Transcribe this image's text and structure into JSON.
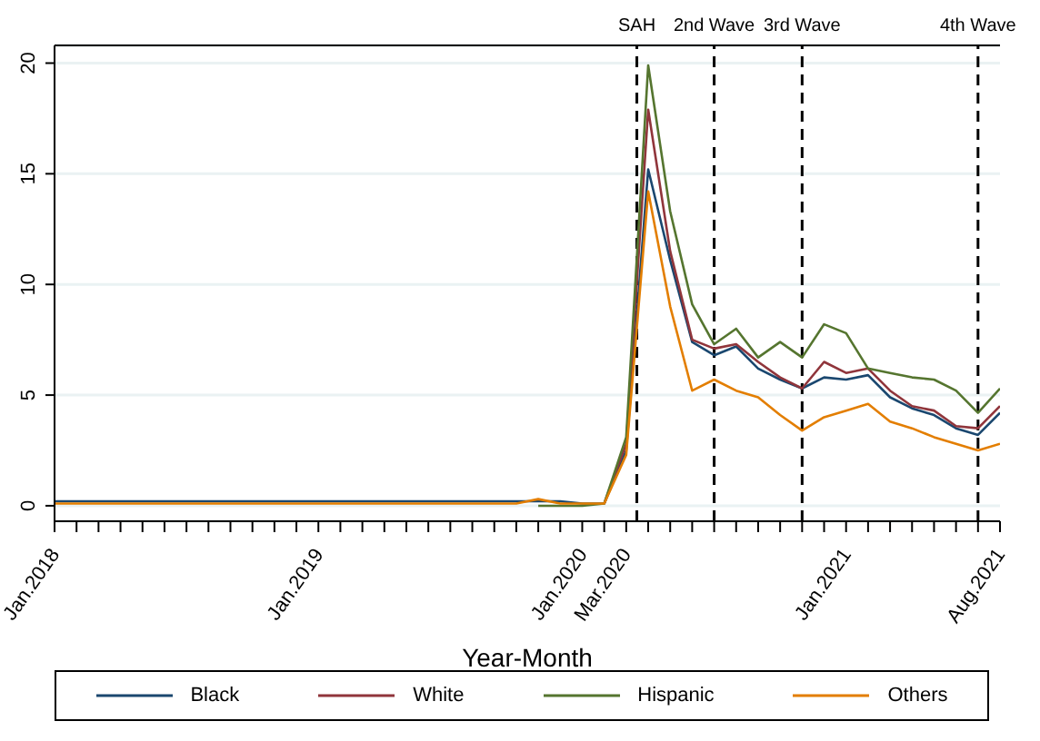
{
  "chart_data": {
    "type": "line",
    "xlabel": "Year-Month",
    "x": [
      "2018-01",
      "2018-02",
      "2018-03",
      "2018-04",
      "2018-05",
      "2018-06",
      "2018-07",
      "2018-08",
      "2018-09",
      "2018-10",
      "2018-11",
      "2018-12",
      "2019-01",
      "2019-02",
      "2019-03",
      "2019-04",
      "2019-05",
      "2019-06",
      "2019-07",
      "2019-08",
      "2019-09",
      "2019-10",
      "2019-11",
      "2019-12",
      "2020-01",
      "2020-02",
      "2020-03",
      "2020-04",
      "2020-05",
      "2020-06",
      "2020-07",
      "2020-08",
      "2020-09",
      "2020-10",
      "2020-11",
      "2020-12",
      "2021-01",
      "2021-02",
      "2021-03",
      "2021-04",
      "2021-05",
      "2021-06",
      "2021-07",
      "2021-08"
    ],
    "series": [
      {
        "name": "Black",
        "color": "#1a476f",
        "values": [
          0.2,
          0.2,
          0.2,
          0.2,
          0.2,
          0.2,
          0.2,
          0.2,
          0.2,
          0.2,
          0.2,
          0.2,
          0.2,
          0.2,
          0.2,
          0.2,
          0.2,
          0.2,
          0.2,
          0.2,
          0.2,
          0.2,
          0.2,
          0.2,
          0.1,
          0.1,
          2.5,
          15.2,
          11.1,
          7.4,
          6.8,
          7.2,
          6.2,
          5.7,
          5.3,
          5.8,
          5.7,
          5.9,
          4.9,
          4.4,
          4.1,
          3.5,
          3.2,
          4.2
        ]
      },
      {
        "name": "White",
        "color": "#90353b",
        "values": [
          null,
          null,
          null,
          null,
          null,
          null,
          null,
          null,
          null,
          null,
          null,
          null,
          null,
          null,
          null,
          null,
          null,
          null,
          null,
          null,
          null,
          null,
          null,
          null,
          null,
          0.1,
          2.8,
          17.9,
          11.5,
          7.5,
          7.1,
          7.3,
          6.5,
          5.8,
          5.3,
          6.5,
          6.0,
          6.2,
          5.2,
          4.5,
          4.3,
          3.6,
          3.5,
          4.5
        ]
      },
      {
        "name": "Hispanic",
        "color": "#55752f",
        "values": [
          null,
          null,
          null,
          null,
          null,
          null,
          null,
          null,
          null,
          null,
          null,
          null,
          null,
          null,
          null,
          null,
          null,
          null,
          null,
          null,
          null,
          null,
          0.0,
          0.0,
          0.0,
          0.1,
          3.1,
          19.9,
          13.3,
          9.1,
          7.3,
          8.0,
          6.7,
          7.4,
          6.7,
          8.2,
          7.8,
          6.2,
          6.0,
          5.8,
          5.7,
          5.2,
          4.2,
          5.3
        ]
      },
      {
        "name": "Others",
        "color": "#e37e00",
        "values": [
          0.1,
          0.1,
          0.1,
          0.1,
          0.1,
          0.1,
          0.1,
          0.1,
          0.1,
          0.1,
          0.1,
          0.1,
          0.1,
          0.1,
          0.1,
          0.1,
          0.1,
          0.1,
          0.1,
          0.1,
          0.1,
          0.1,
          0.3,
          0.1,
          0.1,
          0.1,
          2.3,
          14.2,
          9.0,
          5.2,
          5.7,
          5.2,
          4.9,
          4.1,
          3.4,
          4.0,
          4.3,
          4.6,
          3.8,
          3.5,
          3.1,
          2.8,
          2.5,
          2.8
        ]
      }
    ],
    "xlim": [
      "2018-01",
      "2021-08"
    ],
    "xticks": [
      {
        "value": "2018-01",
        "label": "Jan.2018"
      },
      {
        "value": "2018-02",
        "label": null
      },
      {
        "value": "2018-03",
        "label": null
      },
      {
        "value": "2018-04",
        "label": null
      },
      {
        "value": "2018-05",
        "label": null
      },
      {
        "value": "2018-06",
        "label": null
      },
      {
        "value": "2018-07",
        "label": null
      },
      {
        "value": "2018-08",
        "label": null
      },
      {
        "value": "2018-09",
        "label": null
      },
      {
        "value": "2018-10",
        "label": null
      },
      {
        "value": "2018-11",
        "label": null
      },
      {
        "value": "2018-12",
        "label": null
      },
      {
        "value": "2019-01",
        "label": "Jan.2019"
      },
      {
        "value": "2019-02",
        "label": null
      },
      {
        "value": "2019-03",
        "label": null
      },
      {
        "value": "2019-04",
        "label": null
      },
      {
        "value": "2019-05",
        "label": null
      },
      {
        "value": "2019-06",
        "label": null
      },
      {
        "value": "2019-07",
        "label": null
      },
      {
        "value": "2019-08",
        "label": null
      },
      {
        "value": "2019-09",
        "label": null
      },
      {
        "value": "2019-10",
        "label": null
      },
      {
        "value": "2019-11",
        "label": null
      },
      {
        "value": "2019-12",
        "label": null
      },
      {
        "value": "2020-01",
        "label": "Jan.2020"
      },
      {
        "value": "2020-02",
        "label": null
      },
      {
        "value": "2020-03",
        "label": "Mar.2020"
      },
      {
        "value": "2020-04",
        "label": null
      },
      {
        "value": "2020-05",
        "label": null
      },
      {
        "value": "2020-06",
        "label": null
      },
      {
        "value": "2020-07",
        "label": null
      },
      {
        "value": "2020-08",
        "label": null
      },
      {
        "value": "2020-09",
        "label": null
      },
      {
        "value": "2020-10",
        "label": null
      },
      {
        "value": "2020-11",
        "label": null
      },
      {
        "value": "2020-12",
        "label": null
      },
      {
        "value": "2021-01",
        "label": "Jan.2021"
      },
      {
        "value": "2021-02",
        "label": null
      },
      {
        "value": "2021-03",
        "label": null
      },
      {
        "value": "2021-04",
        "label": null
      },
      {
        "value": "2021-05",
        "label": null
      },
      {
        "value": "2021-06",
        "label": null
      },
      {
        "value": "2021-07",
        "label": null
      },
      {
        "value": "2021-08",
        "label": "Aug.2021"
      }
    ],
    "ylim": [
      -0.7,
      20.8
    ],
    "yticks": [
      0,
      5,
      10,
      15,
      20
    ],
    "ref_lines": [
      {
        "axis": "x",
        "value": "2020-03-16",
        "label": "SAH",
        "color": "#000000",
        "line_style": "dashed"
      },
      {
        "axis": "x",
        "value": "2020-07",
        "label": "2nd Wave",
        "color": "#000000",
        "line_style": "dashed"
      },
      {
        "axis": "x",
        "value": "2020-11",
        "label": "3rd Wave",
        "color": "#000000",
        "line_style": "dashed"
      },
      {
        "axis": "x",
        "value": "2021-07",
        "label": "4th Wave",
        "color": "#000000",
        "line_style": "dashed"
      }
    ],
    "grid": "y",
    "legend": "bottom",
    "marker": "none",
    "line_style": "solid"
  }
}
